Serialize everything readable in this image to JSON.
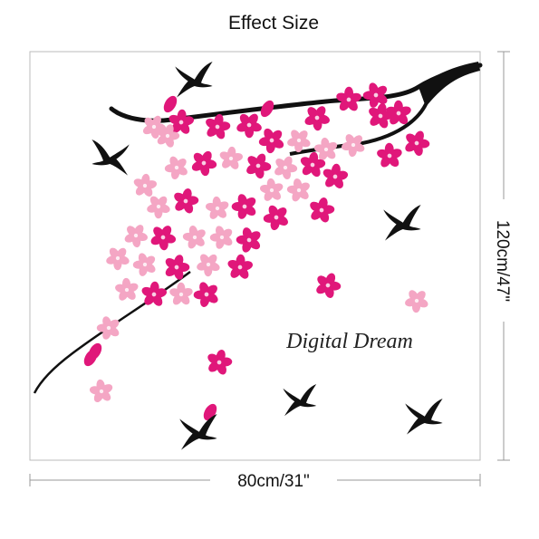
{
  "header": {
    "title": "Effect Size"
  },
  "decal": {
    "text": "Digital Dream"
  },
  "dimensions": {
    "width": "80cm/31\"",
    "height": "120cm/47\""
  }
}
